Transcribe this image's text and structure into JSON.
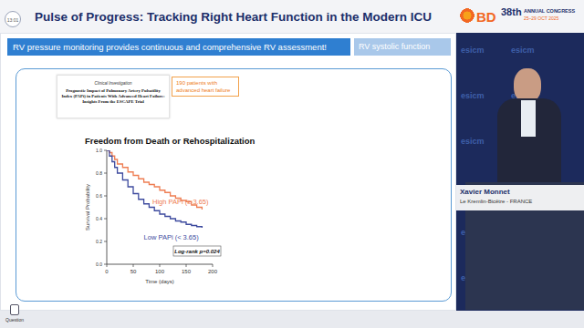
{
  "header": {
    "time": "13:01",
    "title": "Pulse of Progress: Tracking Right Heart Function in the Modern ICU",
    "sponsor": "BD",
    "congress": "38th",
    "congress_label": "ANNUAL CONGRESS",
    "dates": "25–29 OCT 2025"
  },
  "slide": {
    "banner": "RV pressure monitoring provides continuous and comprehensive RV assessment!",
    "section": "RV systolic function",
    "paper": {
      "category": "Clinical Investigation",
      "title": "Prognostic Impact of Pulmonary Artery Pulsatility Index (PAPi) in Patients With Advanced Heart Failure: Insights From the ESCAPE Trial"
    },
    "callout": "190 patients with advanced heart failure"
  },
  "chart_data": {
    "type": "line",
    "title": "Freedom from Death or Rehospitalization",
    "x_label": "Time (days)",
    "y_label": "Survival Probability",
    "x": [
      0,
      5,
      10,
      15,
      20,
      30,
      40,
      50,
      60,
      70,
      80,
      90,
      100,
      110,
      120,
      130,
      140,
      150,
      160,
      170,
      180
    ],
    "series": [
      {
        "name": "High PAPi (≥ 3.65)",
        "color": "#ee7d52",
        "line_style": "step",
        "values": [
          1.0,
          0.98,
          0.95,
          0.92,
          0.88,
          0.85,
          0.81,
          0.78,
          0.75,
          0.72,
          0.7,
          0.68,
          0.65,
          0.63,
          0.6,
          0.58,
          0.56,
          0.55,
          0.52,
          0.5,
          0.48
        ]
      },
      {
        "name": "Low PAPi (< 3.65)",
        "color": "#3d4a9e",
        "line_style": "step",
        "values": [
          1.0,
          0.95,
          0.9,
          0.85,
          0.8,
          0.74,
          0.68,
          0.62,
          0.57,
          0.53,
          0.5,
          0.47,
          0.44,
          0.42,
          0.4,
          0.38,
          0.37,
          0.35,
          0.34,
          0.33,
          0.32
        ]
      }
    ],
    "xlim": [
      0,
      200
    ],
    "xticks": [
      0,
      50,
      100,
      150,
      200
    ],
    "ylim": [
      0,
      1
    ],
    "yticks": [
      {
        "value": 0,
        "label": "0.0"
      },
      {
        "value": 0.2,
        "label": "0.2"
      },
      {
        "value": 0.4,
        "label": "0.4"
      },
      {
        "value": 0.6,
        "label": "0.6"
      },
      {
        "value": 0.8,
        "label": "0.8"
      },
      {
        "value": 1,
        "label": "1.0"
      }
    ],
    "grid": false,
    "annotations": [
      "Log-rank p=0.024"
    ]
  },
  "speaker": {
    "backdrop": "esicm",
    "name": "Xavier Monnet",
    "affiliation": "Le Kremlin-Bicêtre - FRANCE"
  },
  "footer": {
    "question": "Question"
  }
}
